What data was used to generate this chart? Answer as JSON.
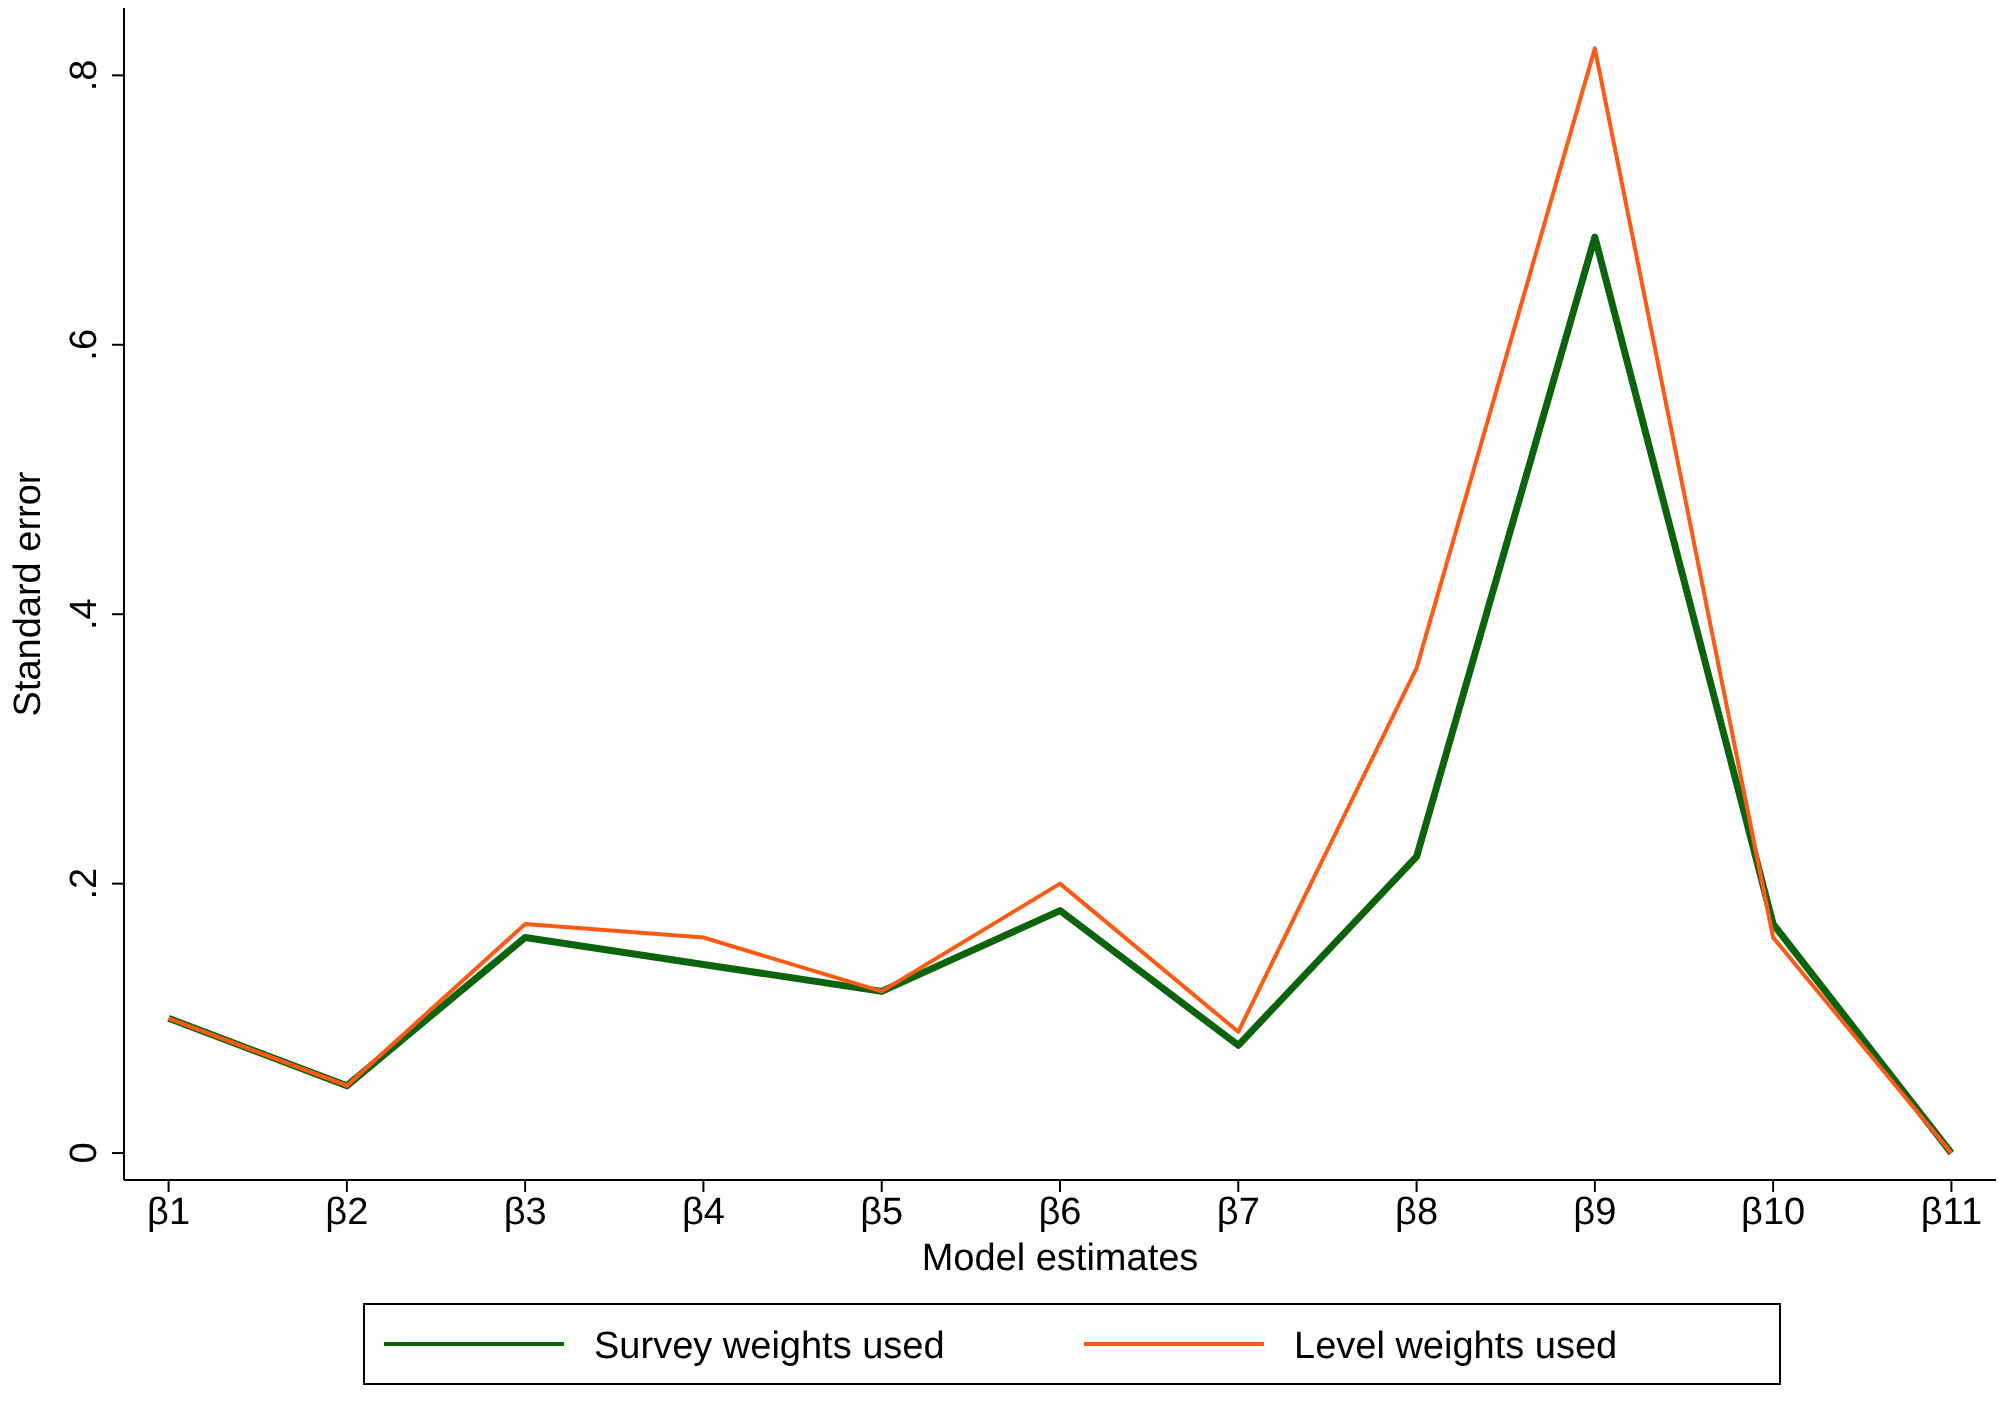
{
  "chart_data": {
    "type": "line",
    "xlabel": "Model estimates",
    "ylabel": "Standard error",
    "categories": [
      "β1",
      "β2",
      "β3",
      "β4",
      "β5",
      "β6",
      "β7",
      "β8",
      "β9",
      "β10",
      "β11"
    ],
    "series": [
      {
        "name": "Survey weights used",
        "color": "#0b640b",
        "values": [
          0.1,
          0.05,
          0.16,
          0.14,
          0.12,
          0.18,
          0.08,
          0.22,
          0.68,
          0.17,
          0
        ]
      },
      {
        "name": "Level weights used",
        "color": "#ff5a14",
        "values": [
          0.1,
          0.05,
          0.17,
          0.16,
          0.12,
          0.2,
          0.09,
          0.36,
          0.82,
          0.16,
          0
        ]
      }
    ],
    "ylim": [
      -0.02,
      0.85
    ],
    "yticks": [
      {
        "value": 0,
        "label": "0"
      },
      {
        "value": 0.2,
        "label": ".2"
      },
      {
        "value": 0.4,
        "label": ".4"
      },
      {
        "value": 0.6,
        "label": ".6"
      },
      {
        "value": 0.8,
        "label": ".8"
      }
    ],
    "grid": false,
    "legend": "bottom",
    "marker": "none",
    "line_style": "solid"
  }
}
